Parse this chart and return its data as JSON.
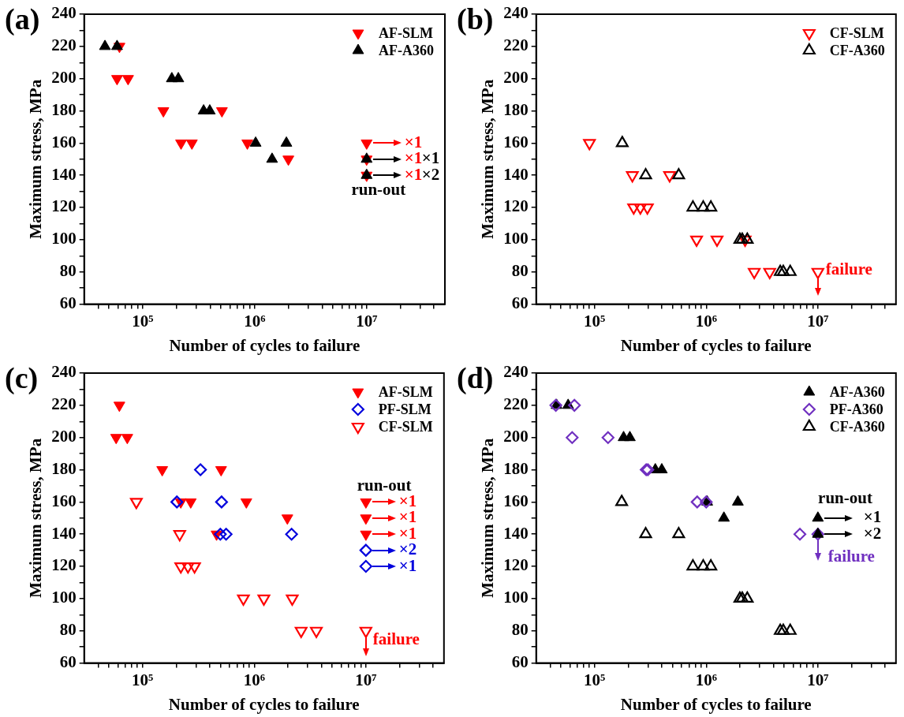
{
  "chart_data": [
    {
      "type": "scatter",
      "title": "(a)",
      "xlabel": "Number of cycles to failure",
      "ylabel": "Maximum stress, MPa",
      "log": "x",
      "legend": "top right",
      "xlim": [
        30000,
        50000000
      ],
      "xticks": [
        {
          "value": 40000,
          "label": null
        },
        {
          "value": 50000,
          "label": null
        },
        {
          "value": 60000,
          "label": null
        },
        {
          "value": 70000,
          "label": null
        },
        {
          "value": 80000,
          "label": null
        },
        {
          "value": 90000,
          "label": null
        },
        {
          "value": 100000,
          "label": "10⁵"
        },
        {
          "value": 200000,
          "label": null
        },
        {
          "value": 300000,
          "label": null
        },
        {
          "value": 400000,
          "label": null
        },
        {
          "value": 500000,
          "label": null
        },
        {
          "value": 600000,
          "label": null
        },
        {
          "value": 700000,
          "label": null
        },
        {
          "value": 800000,
          "label": null
        },
        {
          "value": 900000,
          "label": null
        },
        {
          "value": 1000000,
          "label": "10⁶"
        },
        {
          "value": 2000000,
          "label": null
        },
        {
          "value": 3000000,
          "label": null
        },
        {
          "value": 4000000,
          "label": null
        },
        {
          "value": 5000000,
          "label": null
        },
        {
          "value": 6000000,
          "label": null
        },
        {
          "value": 7000000,
          "label": null
        },
        {
          "value": 8000000,
          "label": null
        },
        {
          "value": 9000000,
          "label": null
        },
        {
          "value": 10000000,
          "label": "10⁷"
        },
        {
          "value": 20000000,
          "label": null
        },
        {
          "value": 30000000,
          "label": null
        },
        {
          "value": 40000000,
          "label": null
        }
      ],
      "ylim": [
        60,
        240
      ],
      "yticks": [
        60,
        {
          "value": 70,
          "label": null
        },
        80,
        {
          "value": 90,
          "label": null
        },
        100,
        {
          "value": 110,
          "label": null
        },
        120,
        {
          "value": 130,
          "label": null
        },
        140,
        {
          "value": 150,
          "label": null
        },
        160,
        {
          "value": 170,
          "label": null
        },
        180,
        {
          "value": 190,
          "label": null
        },
        200,
        {
          "value": 210,
          "label": null
        },
        220,
        {
          "value": 230,
          "label": null
        },
        240
      ],
      "series": [
        {
          "name": "AF-SLM",
          "color": "#ff0000",
          "marker": "triangle-down",
          "x": [
            62000,
            59000,
            74000,
            153000,
            510000,
            220000,
            275000,
            860000,
            2000000
          ],
          "values": [
            220,
            200,
            200,
            180,
            180,
            160,
            160,
            160,
            150
          ]
        },
        {
          "name": "AF-A360",
          "color": "#000000",
          "marker": "triangle",
          "x": [
            46000,
            59000,
            182000,
            208000,
            350000,
            397000,
            1020000,
            1920000,
            1430000
          ],
          "values": [
            220,
            220,
            200,
            200,
            180,
            180,
            160,
            160,
            150
          ]
        },
        {
          "color": "#ff0000",
          "marker": "triangle-down",
          "x": [
            10000000,
            10000000,
            10000000
          ],
          "values": [
            160,
            150,
            140
          ]
        },
        {
          "color": "#000000",
          "marker": "triangle",
          "x": [
            10000000,
            10000000
          ],
          "values": [
            150,
            140
          ]
        }
      ],
      "annotations": [
        "×1",
        "×1",
        "×1",
        "×1",
        "×2",
        "run-out"
      ]
    },
    {
      "type": "scatter",
      "title": "(b)",
      "xlabel": "Number of cycles to failure",
      "ylabel": "Maximum stress, MPa",
      "log": "x",
      "legend": "top right",
      "xlim": [
        30000,
        50000000
      ],
      "xticks": [
        {
          "value": 40000,
          "label": null
        },
        {
          "value": 50000,
          "label": null
        },
        {
          "value": 60000,
          "label": null
        },
        {
          "value": 70000,
          "label": null
        },
        {
          "value": 80000,
          "label": null
        },
        {
          "value": 90000,
          "label": null
        },
        {
          "value": 100000,
          "label": "10⁵"
        },
        {
          "value": 200000,
          "label": null
        },
        {
          "value": 300000,
          "label": null
        },
        {
          "value": 400000,
          "label": null
        },
        {
          "value": 500000,
          "label": null
        },
        {
          "value": 600000,
          "label": null
        },
        {
          "value": 700000,
          "label": null
        },
        {
          "value": 800000,
          "label": null
        },
        {
          "value": 900000,
          "label": null
        },
        {
          "value": 1000000,
          "label": "10⁶"
        },
        {
          "value": 2000000,
          "label": null
        },
        {
          "value": 3000000,
          "label": null
        },
        {
          "value": 4000000,
          "label": null
        },
        {
          "value": 5000000,
          "label": null
        },
        {
          "value": 6000000,
          "label": null
        },
        {
          "value": 7000000,
          "label": null
        },
        {
          "value": 8000000,
          "label": null
        },
        {
          "value": 9000000,
          "label": null
        },
        {
          "value": 10000000,
          "label": "10⁷"
        },
        {
          "value": 20000000,
          "label": null
        },
        {
          "value": 30000000,
          "label": null
        },
        {
          "value": 40000000,
          "label": null
        }
      ],
      "ylim": [
        60,
        240
      ],
      "yticks": [
        60,
        {
          "value": 70,
          "label": null
        },
        80,
        {
          "value": 90,
          "label": null
        },
        100,
        {
          "value": 110,
          "label": null
        },
        120,
        {
          "value": 130,
          "label": null
        },
        140,
        {
          "value": 150,
          "label": null
        },
        160,
        {
          "value": 170,
          "label": null
        },
        180,
        {
          "value": 190,
          "label": null
        },
        200,
        {
          "value": 210,
          "label": null
        },
        220,
        {
          "value": 230,
          "label": null
        },
        240
      ],
      "series": [
        {
          "name": "CF-SLM",
          "color": "#ff0000",
          "marker": "triangle-down-open",
          "x": [
            90000,
            218000,
            470000,
            224000,
            257000,
            297000,
            820000,
            1250000,
            2230000,
            2690000,
            3700000,
            10000000
          ],
          "values": [
            160,
            140,
            140,
            120,
            120,
            120,
            100,
            100,
            100,
            80,
            80,
            80
          ]
        },
        {
          "name": "CF-A360",
          "color": "#000000",
          "marker": "triangle-open",
          "x": [
            177000,
            287000,
            567000,
            760000,
            940000,
            1100000,
            2000000,
            2100000,
            2330000,
            4600000,
            4900000,
            5650000
          ],
          "values": [
            160,
            140,
            140,
            120,
            120,
            120,
            100,
            100,
            100,
            80,
            80,
            80
          ]
        }
      ],
      "annotations": [
        "failure"
      ]
    },
    {
      "type": "scatter",
      "title": "(c)",
      "xlabel": "Number of cycles to failure",
      "ylabel": "Maximum stress, MPa",
      "log": "x",
      "legend": "top right",
      "xlim": [
        30000,
        50000000
      ],
      "xticks": [
        {
          "value": 40000,
          "label": null
        },
        {
          "value": 50000,
          "label": null
        },
        {
          "value": 60000,
          "label": null
        },
        {
          "value": 70000,
          "label": null
        },
        {
          "value": 80000,
          "label": null
        },
        {
          "value": 90000,
          "label": null
        },
        {
          "value": 100000,
          "label": "10⁵"
        },
        {
          "value": 200000,
          "label": null
        },
        {
          "value": 300000,
          "label": null
        },
        {
          "value": 400000,
          "label": null
        },
        {
          "value": 500000,
          "label": null
        },
        {
          "value": 600000,
          "label": null
        },
        {
          "value": 700000,
          "label": null
        },
        {
          "value": 800000,
          "label": null
        },
        {
          "value": 900000,
          "label": null
        },
        {
          "value": 1000000,
          "label": "10⁶"
        },
        {
          "value": 2000000,
          "label": null
        },
        {
          "value": 3000000,
          "label": null
        },
        {
          "value": 4000000,
          "label": null
        },
        {
          "value": 5000000,
          "label": null
        },
        {
          "value": 6000000,
          "label": null
        },
        {
          "value": 7000000,
          "label": null
        },
        {
          "value": 8000000,
          "label": null
        },
        {
          "value": 9000000,
          "label": null
        },
        {
          "value": 10000000,
          "label": "10⁷"
        },
        {
          "value": 20000000,
          "label": null
        },
        {
          "value": 30000000,
          "label": null
        },
        {
          "value": 40000000,
          "label": null
        }
      ],
      "ylim": [
        60,
        240
      ],
      "yticks": [
        60,
        {
          "value": 70,
          "label": null
        },
        80,
        {
          "value": 90,
          "label": null
        },
        100,
        {
          "value": 110,
          "label": null
        },
        120,
        {
          "value": 130,
          "label": null
        },
        140,
        {
          "value": 150,
          "label": null
        },
        160,
        {
          "value": 170,
          "label": null
        },
        180,
        {
          "value": 190,
          "label": null
        },
        200,
        {
          "value": 210,
          "label": null
        },
        220,
        {
          "value": 230,
          "label": null
        },
        240
      ],
      "series": [
        {
          "name": "AF-SLM",
          "color": "#ff0000",
          "marker": "triangle-down",
          "x": [
            62000,
            58000,
            73000,
            150000,
            505000,
            220000,
            270000,
            850000,
            1980000,
            460000
          ],
          "values": [
            220,
            200,
            200,
            180,
            180,
            160,
            160,
            160,
            150,
            140
          ]
        },
        {
          "name": "PF-SLM",
          "color": "#0000dd",
          "marker": "diamond-open",
          "x": [
            330000,
            203000,
            510000,
            497000,
            560000,
            2160000
          ],
          "values": [
            180,
            160,
            160,
            140,
            140,
            140
          ]
        },
        {
          "name": "CF-SLM",
          "color": "#ff0000",
          "marker": "triangle-down-open",
          "x": [
            88000,
            215000,
            220000,
            255000,
            292000,
            800000,
            1220000,
            2190000,
            2630000,
            3600000,
            10000000
          ],
          "values": [
            160,
            140,
            120,
            120,
            120,
            100,
            100,
            100,
            80,
            80,
            80
          ]
        },
        {
          "color": "#ff0000",
          "marker": "triangle-down",
          "x": [
            10000000,
            10000000,
            10000000
          ],
          "values": [
            160,
            150,
            140
          ]
        },
        {
          "color": "#0000dd",
          "marker": "diamond-open",
          "x": [
            10000000,
            10000000
          ],
          "values": [
            130,
            120
          ]
        }
      ],
      "annotations": [
        "run-out",
        "×1",
        "×1",
        "×1",
        "×2",
        "×1",
        "failure"
      ]
    },
    {
      "type": "scatter",
      "title": "(d)",
      "xlabel": "Number of cycles to failure",
      "ylabel": "Maximum stress, MPa",
      "log": "x",
      "legend": "top right",
      "xlim": [
        30000,
        50000000
      ],
      "xticks": [
        {
          "value": 40000,
          "label": null
        },
        {
          "value": 50000,
          "label": null
        },
        {
          "value": 60000,
          "label": null
        },
        {
          "value": 70000,
          "label": null
        },
        {
          "value": 80000,
          "label": null
        },
        {
          "value": 90000,
          "label": null
        },
        {
          "value": 100000,
          "label": "10⁵"
        },
        {
          "value": 200000,
          "label": null
        },
        {
          "value": 300000,
          "label": null
        },
        {
          "value": 400000,
          "label": null
        },
        {
          "value": 500000,
          "label": null
        },
        {
          "value": 600000,
          "label": null
        },
        {
          "value": 700000,
          "label": null
        },
        {
          "value": 800000,
          "label": null
        },
        {
          "value": 900000,
          "label": null
        },
        {
          "value": 1000000,
          "label": "10⁶"
        },
        {
          "value": 2000000,
          "label": null
        },
        {
          "value": 3000000,
          "label": null
        },
        {
          "value": 4000000,
          "label": null
        },
        {
          "value": 5000000,
          "label": null
        },
        {
          "value": 6000000,
          "label": null
        },
        {
          "value": 7000000,
          "label": null
        },
        {
          "value": 8000000,
          "label": null
        },
        {
          "value": 9000000,
          "label": null
        },
        {
          "value": 10000000,
          "label": "10⁷"
        },
        {
          "value": 20000000,
          "label": null
        },
        {
          "value": 30000000,
          "label": null
        },
        {
          "value": 40000000,
          "label": null
        }
      ],
      "ylim": [
        60,
        240
      ],
      "yticks": [
        60,
        {
          "value": 70,
          "label": null
        },
        80,
        {
          "value": 90,
          "label": null
        },
        100,
        {
          "value": 110,
          "label": null
        },
        120,
        {
          "value": 130,
          "label": null
        },
        140,
        {
          "value": 150,
          "label": null
        },
        160,
        {
          "value": 170,
          "label": null
        },
        180,
        {
          "value": 190,
          "label": null
        },
        200,
        {
          "value": 210,
          "label": null
        },
        220,
        {
          "value": 230,
          "label": null
        },
        240
      ],
      "series": [
        {
          "name": "AF-A360",
          "color": "#000000",
          "marker": "triangle",
          "x": [
            45700,
            58000,
            182000,
            207000,
            350000,
            400000,
            1020000,
            1920000,
            1440000
          ],
          "values": [
            220,
            220,
            200,
            200,
            180,
            180,
            160,
            160,
            150
          ]
        },
        {
          "name": "PF-A360",
          "color": "#7030c0",
          "marker": "diamond-open",
          "x": [
            45000,
            66000,
            63000,
            132000,
            290000,
            300000,
            830000,
            1000000,
            6900000,
            10000000
          ],
          "values": [
            220,
            220,
            200,
            200,
            180,
            180,
            160,
            160,
            140,
            140
          ]
        },
        {
          "name": "CF-A360",
          "color": "#000000",
          "marker": "triangle-open",
          "x": [
            175000,
            287000,
            567000,
            760000,
            940000,
            1100000,
            2000000,
            2100000,
            2330000,
            4600000,
            4900000,
            5650000
          ],
          "values": [
            160,
            140,
            140,
            120,
            120,
            120,
            100,
            100,
            100,
            80,
            80,
            80
          ]
        },
        {
          "color": "#000000",
          "marker": "triangle",
          "x": [
            10000000,
            10000000
          ],
          "values": [
            150,
            140
          ]
        }
      ],
      "annotations": [
        "run-out",
        "×1",
        "×2",
        "failure"
      ]
    }
  ]
}
